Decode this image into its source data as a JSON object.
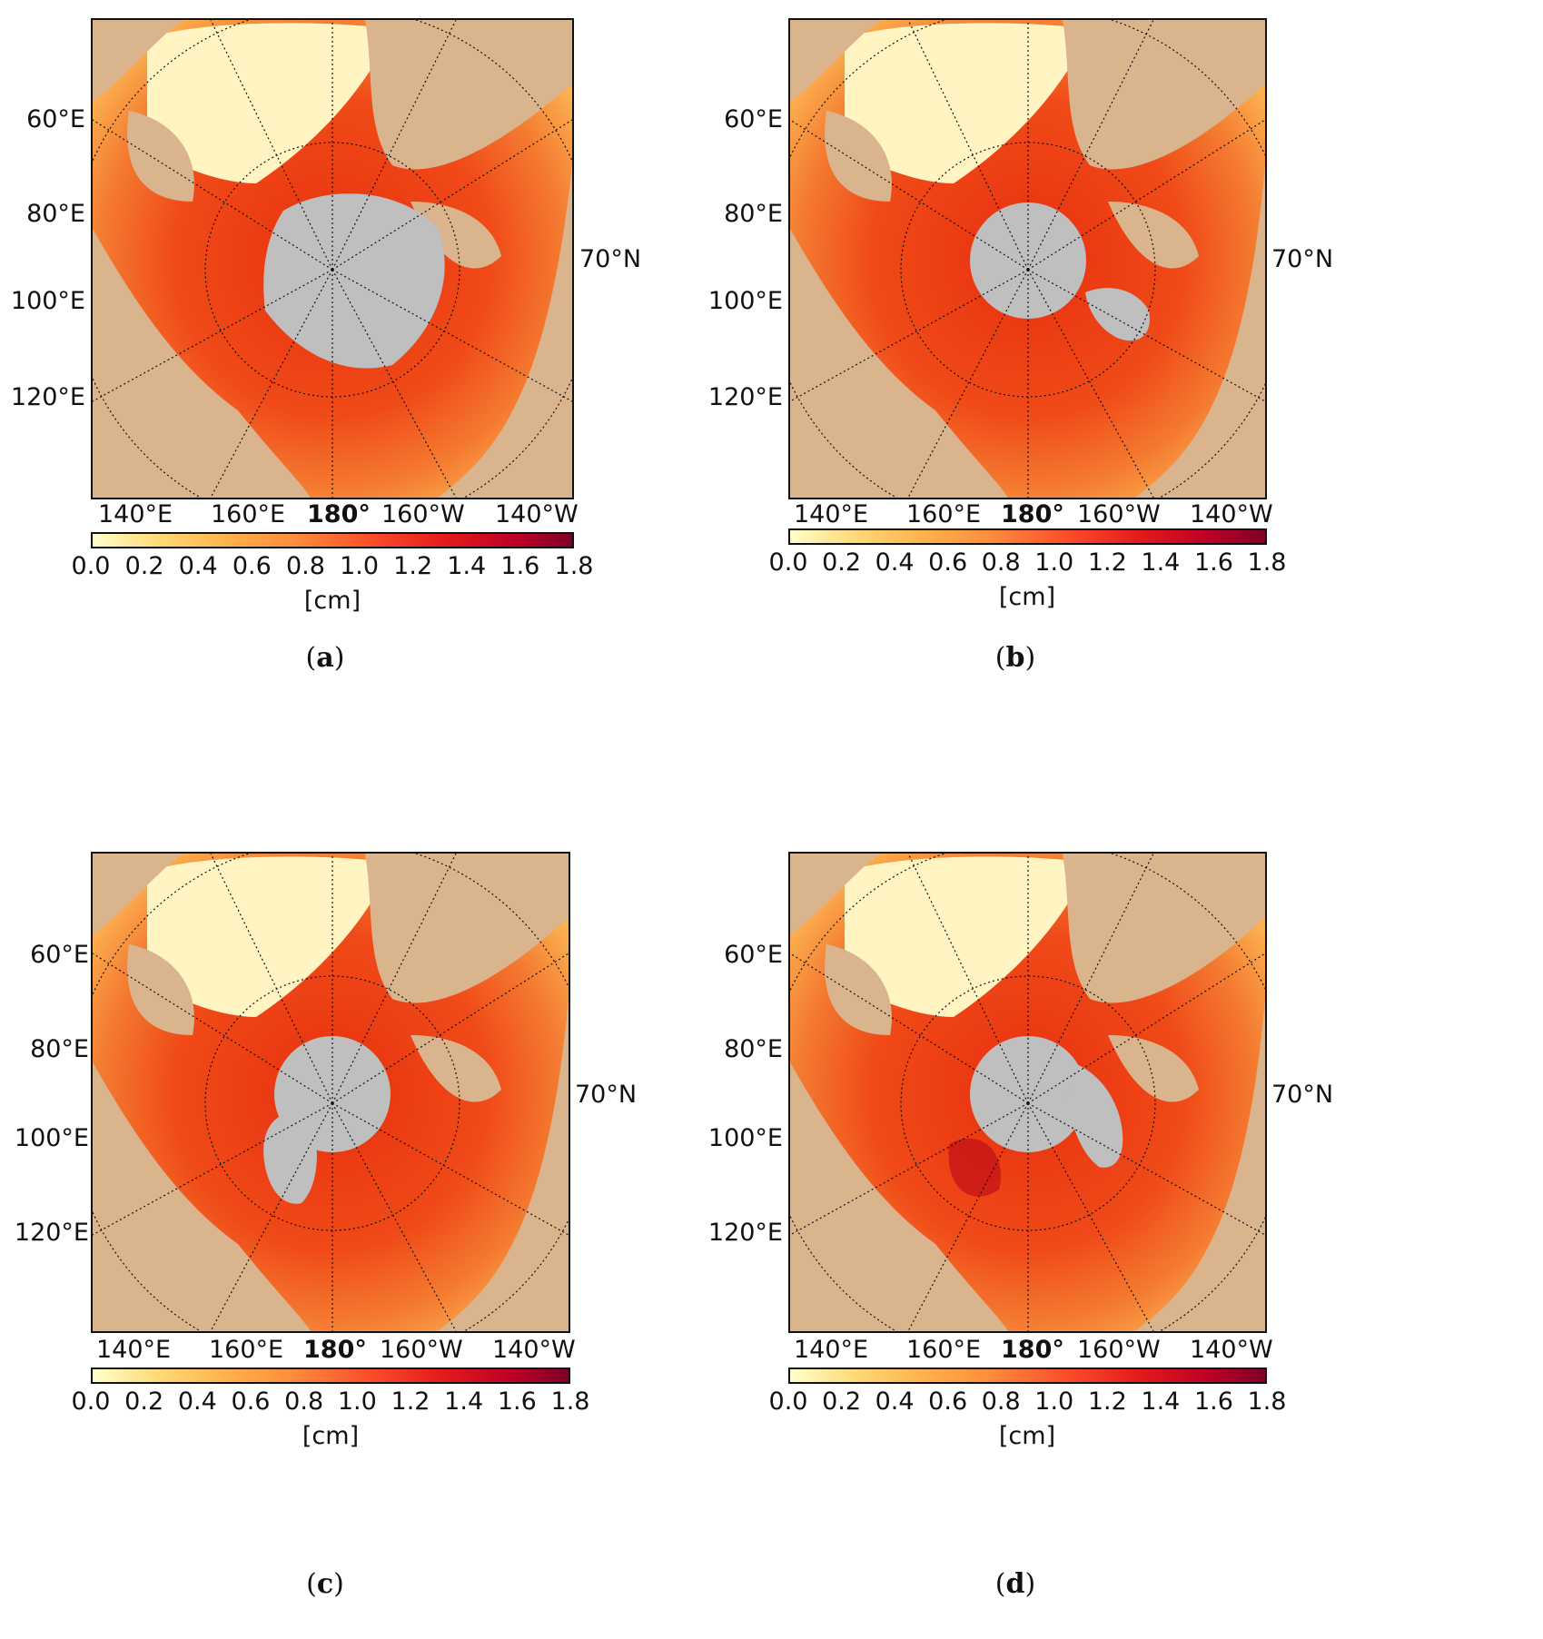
{
  "colorbar": {
    "ticks": [
      "0.0",
      "0.2",
      "0.4",
      "0.6",
      "0.8",
      "1.0",
      "1.2",
      "1.4",
      "1.6",
      "1.8"
    ],
    "range": [
      0.0,
      1.8
    ],
    "unit": "[cm]",
    "colormap": [
      "#ffffcc",
      "#fed976",
      "#feb24c",
      "#fd8d3c",
      "#fc4e2a",
      "#e31a1c",
      "#bd0026",
      "#800026"
    ]
  },
  "map_style": {
    "land_color": "#d9b48c",
    "missing_color": "#bfbfbf",
    "graticule": "dotted"
  },
  "labels": {
    "lat_left": [
      "60°E",
      "80°E",
      "100°E",
      "120°E"
    ],
    "lat_right": "70°N",
    "lon_bottom": [
      "140°E",
      "160°E",
      "180°",
      "160°W",
      "140°W"
    ]
  },
  "panels": [
    {
      "letter": "a",
      "hole": "irregular-large"
    },
    {
      "letter": "b",
      "hole": "circular-with-east-extension"
    },
    {
      "letter": "c",
      "hole": "circular-with-southwest-extension"
    },
    {
      "letter": "d",
      "hole": "circular-with-southeast-extension"
    }
  ]
}
